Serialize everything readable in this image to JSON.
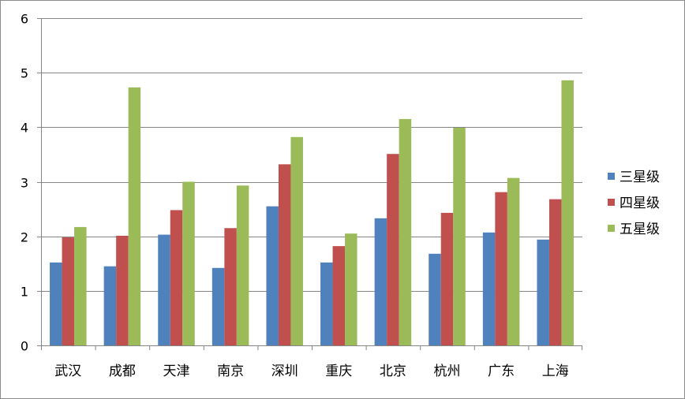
{
  "chart_data": {
    "type": "bar",
    "categories": [
      "武汉",
      "成都",
      "天津",
      "南京",
      "深圳",
      "重庆",
      "北京",
      "杭州",
      "广东",
      "上海"
    ],
    "series": [
      {
        "name": "三星级",
        "color": "#4F81BD",
        "values": [
          1.52,
          1.45,
          2.03,
          1.42,
          2.55,
          1.52,
          2.33,
          1.68,
          2.07,
          1.94
        ]
      },
      {
        "name": "四星级",
        "color": "#C0504D",
        "values": [
          1.98,
          2.01,
          2.48,
          2.15,
          3.32,
          1.82,
          3.51,
          2.43,
          2.81,
          2.68
        ]
      },
      {
        "name": "五星级",
        "color": "#9BBB59",
        "values": [
          2.17,
          4.73,
          3.0,
          2.93,
          3.82,
          2.05,
          4.15,
          3.99,
          3.07,
          4.86
        ]
      }
    ],
    "yticks": [
      "0",
      "1",
      "2",
      "3",
      "4",
      "5",
      "6"
    ],
    "ylim": [
      0,
      6
    ],
    "grid": true,
    "legend_position": "right",
    "title": "",
    "xlabel": "",
    "ylabel": ""
  }
}
